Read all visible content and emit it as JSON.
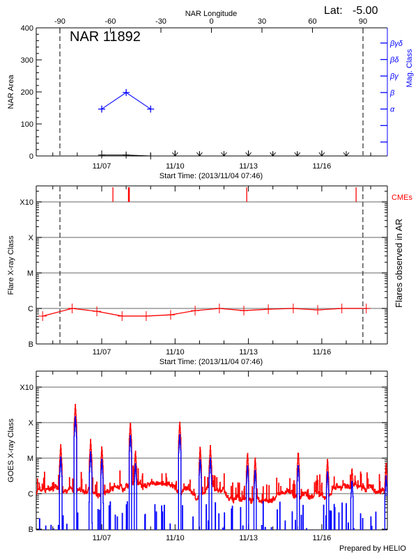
{
  "header": {
    "lat_label": "Lat:",
    "lat_value": "-5.00",
    "region_label": "NAR 11892",
    "footer": "Prepared by HELIO"
  },
  "colors": {
    "area": "#000000",
    "mag_class": "#0000ff",
    "flares": "#ff0000",
    "cmes": "#ff0000",
    "goes_long": "#ff0000",
    "goes_short": "#0000ff",
    "grid": "#999999"
  },
  "chart_data": [
    {
      "type": "line",
      "panel": "nar-area",
      "top_xlabel": "NAR Longitude",
      "top_x_ticks": [
        -90,
        -60,
        -30,
        0,
        30,
        60,
        90
      ],
      "xlabel": "Start Time: (2013/11/04 07:46)",
      "x_ticks": [
        "11/07",
        "11/10",
        "11/13",
        "11/16"
      ],
      "ylabel": "NAR Area",
      "ylim": [
        0,
        400
      ],
      "y_ticks": [
        0,
        100,
        200,
        300,
        400
      ],
      "y2label": "Mag. Class",
      "y2_ticks": [
        "α",
        "β",
        "βγ",
        "βδ",
        "βγδ"
      ],
      "limb_longitudes": [
        -90,
        90
      ],
      "area": {
        "x": [
          "2013-11-07 00:00",
          "2013-11-08 00:00",
          "2013-11-09 00:00"
        ],
        "values": [
          3,
          3,
          0
        ]
      },
      "mag_class": {
        "x": [
          "2013-11-07 00:00",
          "2013-11-08 00:00",
          "2013-11-09 00:00"
        ],
        "values": [
          "α",
          "β",
          "α"
        ]
      },
      "no_data_dates": [
        "2013-11-10 00:00",
        "2013-11-11 00:00",
        "2013-11-12 00:00",
        "2013-11-13 00:00",
        "2013-11-14 00:00",
        "2013-11-15 00:00",
        "2013-11-16 00:00",
        "2013-11-17 00:00"
      ]
    },
    {
      "type": "line",
      "panel": "flares",
      "xlabel": "Start Time: (2013/11/04 07:46)",
      "x_ticks": [
        "11/07",
        "11/10",
        "11/13",
        "11/16"
      ],
      "ylabel": "Flare X-ray Class",
      "y2label": "Flares observed in AR",
      "y_ticks": [
        "B",
        "C",
        "M",
        "X",
        "X10"
      ],
      "grid": true,
      "y_scale": "log",
      "cme_label": "CMEs",
      "limb_times": [
        "2013-11-05 07:00",
        "2013-11-17 16:20"
      ],
      "flares": {
        "x": [
          "2013-11-04 14:00",
          "2013-11-05 19:00",
          "2013-11-06 19:15",
          "2013-11-07 20:00",
          "2013-11-08 19:40",
          "2013-11-09 19:40",
          "2013-11-10 19:40",
          "2013-11-11 19:30",
          "2013-11-12 19:30",
          "2013-11-13 19:30",
          "2013-11-14 20:00",
          "2013-11-15 20:00",
          "2013-11-16 19:40",
          "2013-11-17 19:40"
        ],
        "values": [
          "B6.1",
          "C1.0",
          "B8.3",
          "B6.1",
          "B6.1",
          "B6.6",
          "B8.7",
          "C1.0",
          "B8.7",
          "B9.5",
          "C1.0",
          "B9.1",
          "C1.0",
          "C1.0"
        ]
      },
      "cmes": [
        "2013-11-07 11:00",
        "2013-11-08 02:40",
        "2013-11-12 22:20",
        "2013-11-17 09:40"
      ]
    },
    {
      "type": "line",
      "panel": "goes",
      "xlabel": "",
      "x_ticks": [
        "11/07",
        "11/10",
        "11/13",
        "11/16"
      ],
      "ylabel": "GOES X-ray Class",
      "y_ticks": [
        "B",
        "C",
        "M",
        "X",
        "X10"
      ],
      "grid": true,
      "y_scale": "log",
      "background_class_range": [
        "B6",
        "C2"
      ],
      "long_channel_peaks": {
        "x": [
          "2013-11-05 07:40",
          "2013-11-05 22:00",
          "2013-11-06 13:00",
          "2013-11-07 00:00",
          "2013-11-08 04:00",
          "2013-11-08 09:00",
          "2013-11-10 04:30",
          "2013-11-11 00:30",
          "2013-11-11 10:30",
          "2013-11-12 23:00",
          "2013-11-13 06:30",
          "2013-11-15 00:45",
          "2013-11-16 05:30",
          "2013-11-17 05:30",
          "2013-11-18 15:00"
        ],
        "values": [
          "M2.5",
          "X3.4",
          "M3.4",
          "M2.2",
          "X1.1",
          "M1.7",
          "X1.1",
          "M2.2",
          "M2.3",
          "M1.5",
          "M1.1",
          "M1.6",
          "M1.0",
          "C5.7",
          "C7.3"
        ]
      }
    }
  ]
}
